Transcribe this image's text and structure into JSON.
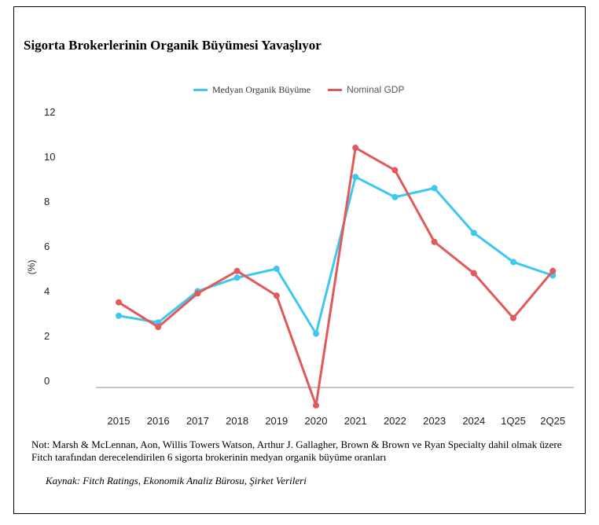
{
  "chart_data": {
    "type": "line",
    "title": "Sigorta Brokerlerinin Organik Büyümesi Yavaşlıyor",
    "ylabel": "(%)",
    "xlabel": "",
    "ylim": [
      -1,
      12
    ],
    "yticks": [
      0,
      2,
      4,
      6,
      8,
      10,
      12
    ],
    "categories": [
      "2015",
      "2016",
      "2017",
      "2018",
      "2019",
      "2020",
      "2021",
      "2022",
      "2023",
      "2024",
      "1Q25",
      "2Q25"
    ],
    "series": [
      {
        "name": "Medyan Organik Büyüme",
        "color": "#3cc8f0",
        "values": [
          3.2,
          2.9,
          4.3,
          4.9,
          5.3,
          2.4,
          9.4,
          8.5,
          8.9,
          6.9,
          5.6,
          5.0
        ]
      },
      {
        "name": "Nominal GDP",
        "color": "#e05a5a",
        "values": [
          3.8,
          2.7,
          4.2,
          5.2,
          4.1,
          -0.8,
          10.7,
          9.7,
          6.5,
          5.1,
          3.1,
          5.2
        ]
      }
    ],
    "grid": false,
    "legend_position": "top-center"
  },
  "note": "Not: Marsh & McLennan, Aon, Willis Towers Watson, Arthur J. Gallagher, Brown & Brown ve Ryan Specialty dahil olmak üzere Fitch tarafından derecelendirilen 6 sigorta brokerinin medyan organik büyüme oranları",
  "source": "Kaynak: Fitch Ratings, Ekonomik Analiz Bürosu, Şirket Verileri"
}
